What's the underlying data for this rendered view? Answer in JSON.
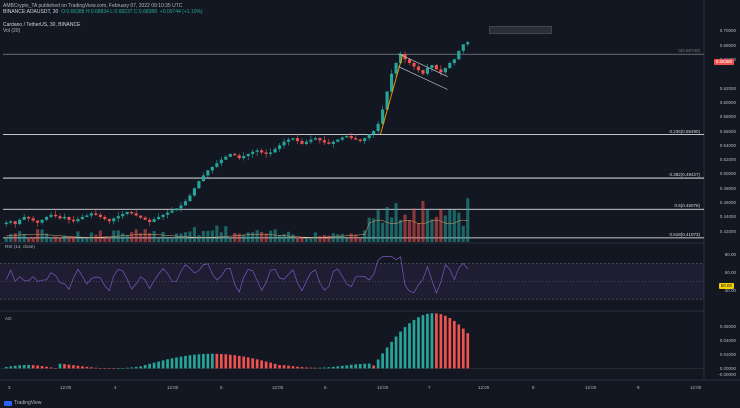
{
  "header": {
    "line1": "AMBCrypto_TA published on TradingView.com, February 07, 2022 09:10:35 UTC",
    "symbol": "BINANCE:ADAUSDT, 30",
    "ohlc": "O:0.68388 H:0.68834 L:0.68237 C:0.68388",
    "change": "+0.00744 (+1.10%)",
    "title2": "Cardano / TetherUS, 30, BINANCE",
    "vol_label": "Vol (20)"
  },
  "colors": {
    "background": "#131722",
    "up": "#26a69a",
    "down": "#ef5350",
    "fib_line": "#ffffff",
    "impulse": "#ff9800",
    "rsi_line": "#7e57c2",
    "ao_up": "#26a69a",
    "ao_down": "#ef5350"
  },
  "price_axis": [
    "0.70000",
    "0.66000",
    "0.62000",
    "0.58000",
    "0.54000",
    "0.52000",
    "0.50000",
    "0.46000",
    "0.44000",
    "0.42000"
  ],
  "price_axis_main": [
    "0.70000",
    "0.68000",
    "0.66000",
    "0.62000",
    "0.60000",
    "0.58000",
    "0.56000",
    "0.54000",
    "0.52000",
    "0.50000",
    "0.48000",
    "0.46000",
    "0.44000",
    "0.42000"
  ],
  "last_price_tag": "0.68388",
  "fib_levels": [
    {
      "label": "0.236(0.55490)",
      "price": 0.5549
    },
    {
      "label": "0.382(0.49427)",
      "price": 0.49427
    },
    {
      "label": "0.5(0.45076)",
      "price": 0.45076
    },
    {
      "label": "0.618(0.41073)",
      "price": 0.41073
    },
    {
      "label": "0(0.66730)",
      "price": 0.6673
    }
  ],
  "rsi": {
    "title": "RSI (14, close)",
    "axis": [
      "80.00",
      "60.00",
      "40.00"
    ],
    "current_tag": "50.00"
  },
  "ao": {
    "title": "AO",
    "axis": [
      "0.06000",
      "0.04000",
      "0.02000",
      "0.00000",
      "-0.00000"
    ]
  },
  "time_axis": [
    "3",
    "12:00",
    "4",
    "12:00",
    "5",
    "12:00",
    "6",
    "12:00",
    "7",
    "12:00",
    "8",
    "12:00",
    "9",
    "12:00"
  ],
  "footer": {
    "brand": "TradingView"
  },
  "chart_data": {
    "type": "candlestick",
    "title": "Cardano / TetherUS, 30, BINANCE",
    "ylim": [
      0.4,
      0.72
    ],
    "close_series": [
      0.432,
      0.434,
      0.43,
      0.436,
      0.44,
      0.438,
      0.435,
      0.432,
      0.436,
      0.44,
      0.443,
      0.441,
      0.438,
      0.44,
      0.436,
      0.434,
      0.437,
      0.44,
      0.442,
      0.445,
      0.443,
      0.44,
      0.437,
      0.434,
      0.438,
      0.441,
      0.444,
      0.447,
      0.445,
      0.442,
      0.439,
      0.436,
      0.433,
      0.437,
      0.44,
      0.443,
      0.446,
      0.449,
      0.452,
      0.456,
      0.462,
      0.47,
      0.48,
      0.49,
      0.498,
      0.505,
      0.51,
      0.515,
      0.52,
      0.524,
      0.528,
      0.526,
      0.522,
      0.525,
      0.528,
      0.531,
      0.533,
      0.53,
      0.528,
      0.53,
      0.535,
      0.54,
      0.545,
      0.548,
      0.55,
      0.546,
      0.542,
      0.545,
      0.548,
      0.55,
      0.547,
      0.544,
      0.542,
      0.545,
      0.548,
      0.551,
      0.553,
      0.55,
      0.548,
      0.546,
      0.55,
      0.555,
      0.56,
      0.57,
      0.59,
      0.615,
      0.64,
      0.655,
      0.667,
      0.66,
      0.655,
      0.65,
      0.645,
      0.64,
      0.648,
      0.652,
      0.646,
      0.642,
      0.648,
      0.655,
      0.66,
      0.672,
      0.681,
      0.684
    ]
  }
}
